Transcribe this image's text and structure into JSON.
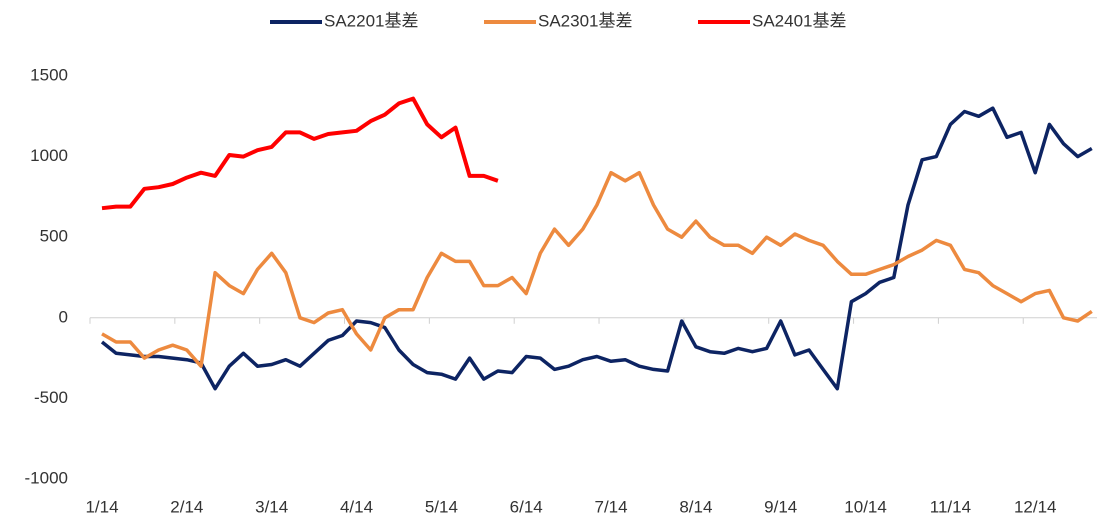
{
  "chart_data": {
    "type": "line",
    "categories": [
      "1/14",
      null,
      null,
      null,
      null,
      null,
      "2/14",
      null,
      null,
      null,
      null,
      null,
      "3/14",
      null,
      null,
      null,
      null,
      null,
      "4/14",
      null,
      null,
      null,
      null,
      null,
      "5/14",
      null,
      null,
      null,
      null,
      null,
      "6/14",
      null,
      null,
      null,
      null,
      null,
      "7/14",
      null,
      null,
      null,
      null,
      null,
      "8/14",
      null,
      null,
      null,
      null,
      null,
      "9/14",
      null,
      null,
      null,
      null,
      null,
      "10/14",
      null,
      null,
      null,
      null,
      null,
      "11/14",
      null,
      null,
      null,
      null,
      null,
      "12/14",
      null,
      null,
      null,
      null
    ],
    "series": [
      {
        "name": "SA2201基差",
        "color": "#0d2463",
        "values": [
          -150,
          -220,
          -230,
          -240,
          -240,
          -250,
          -260,
          -280,
          -440,
          -300,
          -220,
          -300,
          -290,
          -260,
          -300,
          -220,
          -140,
          -110,
          -20,
          -30,
          -60,
          -200,
          -290,
          -340,
          -350,
          -380,
          -250,
          -380,
          -330,
          -340,
          -240,
          -250,
          -320,
          -300,
          -260,
          -240,
          -270,
          -260,
          -300,
          -320,
          -330,
          -20,
          -180,
          -210,
          -220,
          -190,
          -210,
          -190,
          -20,
          -230,
          -200,
          -320,
          -440,
          100,
          150,
          220,
          250,
          700,
          980,
          1000,
          1200,
          1280,
          1250,
          1300,
          1120,
          1150,
          900,
          1200,
          1080,
          1000,
          1050
        ]
      },
      {
        "name": "SA2301基差",
        "color": "#ed8a3f",
        "values": [
          -100,
          -150,
          -150,
          -250,
          -200,
          -170,
          -200,
          -300,
          280,
          200,
          150,
          300,
          400,
          280,
          0,
          -30,
          30,
          50,
          -100,
          -200,
          0,
          50,
          50,
          250,
          400,
          350,
          350,
          200,
          200,
          250,
          150,
          400,
          550,
          450,
          550,
          700,
          900,
          850,
          900,
          700,
          550,
          500,
          600,
          500,
          450,
          450,
          400,
          500,
          450,
          520,
          480,
          450,
          350,
          270,
          270,
          300,
          330,
          380,
          420,
          480,
          450,
          300,
          280,
          200,
          150,
          100,
          150,
          170,
          0,
          -20,
          40
        ]
      },
      {
        "name": "SA2401基差",
        "color": "#ff0000",
        "values": [
          680,
          690,
          690,
          800,
          810,
          830,
          870,
          900,
          880,
          1010,
          1000,
          1040,
          1060,
          1150,
          1150,
          1110,
          1140,
          1150,
          1160,
          1220,
          1260,
          1330,
          1360,
          1200,
          1120,
          1180,
          880,
          880,
          850,
          null,
          null,
          null,
          null,
          null,
          null,
          null,
          null,
          null,
          null,
          null,
          null,
          null,
          null,
          null,
          null,
          null,
          null,
          null,
          null,
          null,
          null,
          null,
          null,
          null,
          null,
          null,
          null,
          null,
          null,
          null,
          null,
          null,
          null,
          null,
          null,
          null,
          null,
          null,
          null,
          null,
          null
        ]
      }
    ],
    "ylim": [
      -1000,
      1500
    ],
    "yticks": [
      -1000,
      -500,
      0,
      500,
      1000,
      1500
    ],
    "grid": false,
    "legend": "top"
  }
}
